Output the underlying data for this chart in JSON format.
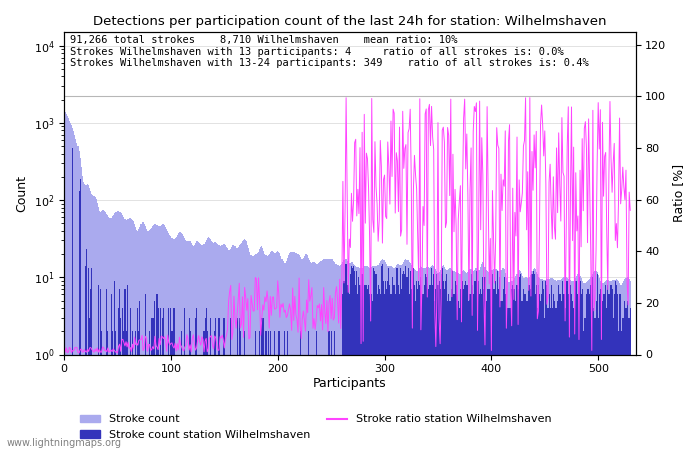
{
  "title": "Detections per participation count of the last 24h for station: Wilhelmshaven",
  "xlabel": "Participants",
  "ylabel_left": "Count",
  "ylabel_right": "Ratio [%]",
  "annotation_lines": [
    "91,266 total strokes    8,710 Wilhelmshaven    mean ratio: 10%",
    "Strokes Wilhelmshaven with 13 participants: 4     ratio of all strokes is: 0.0%",
    "Strokes Wilhelmshaven with 13-24 participants: 349    ratio of all strokes is: 0.4%"
  ],
  "watermark": "www.lightningmaps.org",
  "color_total": "#aaaaee",
  "color_station": "#3333bb",
  "color_ratio": "#ff44ff",
  "max_participants": 530,
  "xlim": [
    0,
    530
  ],
  "ylim_log": [
    1,
    15000
  ],
  "ylim_ratio": [
    0,
    125
  ],
  "ratio_ticks": [
    0,
    20,
    40,
    60,
    80,
    100,
    120
  ],
  "ratio_tick_labels": [
    "0",
    "20",
    "40",
    "60",
    "80",
    "100",
    "120"
  ],
  "yticks_log": [
    1,
    10,
    100,
    1000,
    10000
  ],
  "ytick_log_labels": [
    "10^0",
    "10^1",
    "10^2",
    "10^3",
    "10^4"
  ],
  "legend_stroke_count": "Stroke count",
  "legend_station": "Stroke count station Wilhelmshaven",
  "legend_ratio": "Stroke ratio station Wilhelmshaven"
}
